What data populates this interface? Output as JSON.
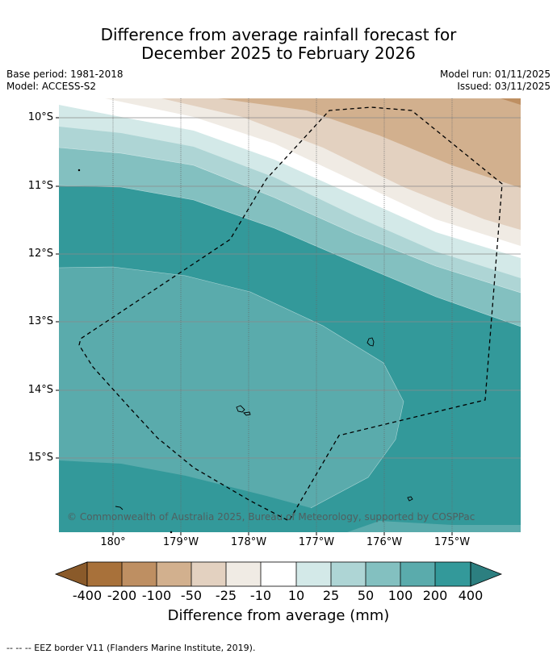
{
  "title": {
    "line1": "Difference from average rainfall forecast for",
    "line2": "December 2025 to February 2026"
  },
  "meta": {
    "base_period": "Base period: 1981-2018",
    "model": "Model: ACCESS-S2",
    "model_run": "Model run: 01/11/2025",
    "issued": "Issued: 03/11/2025"
  },
  "map": {
    "copyright": "© Commonwealth of Australia 2025, Bureau of Meteorology, supported by COSPPac",
    "lat_labels": [
      "10°S",
      "11°S",
      "12°S",
      "13°S",
      "14°S",
      "15°S"
    ],
    "lon_labels": [
      "180°",
      "179°W",
      "178°W",
      "177°W",
      "176°W",
      "175°W"
    ],
    "eez_border_style": "dashed"
  },
  "colorbar": {
    "title": "Difference from average (mm)",
    "labels": [
      "-400",
      "-200",
      "-100",
      "-50",
      "-25",
      "-10",
      "10",
      "25",
      "50",
      "100",
      "200",
      "400"
    ],
    "colors": [
      "#a8713a",
      "#be8f62",
      "#d2b08e",
      "#e3d1c0",
      "#f0ebe4",
      "#ffffff",
      "#d3e9e8",
      "#aed5d5",
      "#83c0c0",
      "#5aabac",
      "#33999a",
      "#2c8384"
    ],
    "low_extend_color": "#8a5a2a",
    "high_extend_color": "#2c7f80"
  },
  "footnote": "-- -- -- EEZ border V11 (Flanders Marine Institute, 2019)."
}
